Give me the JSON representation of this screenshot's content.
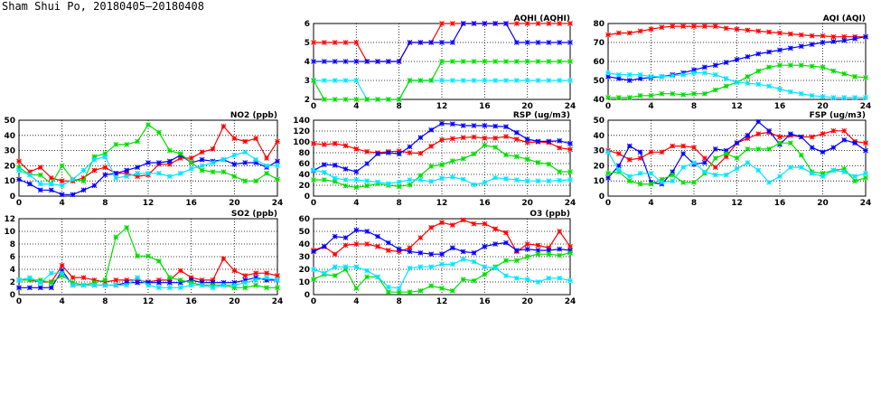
{
  "page_title": "Sham Shui Po, 20180405—20180408",
  "colors": {
    "red": "#ff0000",
    "blue": "#0000ff",
    "green": "#00dd00",
    "cyan": "#00e5ff"
  },
  "chart_data": [
    {
      "id": "aqhi",
      "type": "line",
      "title": "AQHI (AQHI)",
      "ylim": [
        2,
        6
      ],
      "yticks": [
        2,
        3,
        4,
        5,
        6
      ],
      "xticks": [
        0,
        4,
        8,
        12,
        16,
        20,
        24
      ],
      "grid": true,
      "series": [
        {
          "name": "red",
          "values": [
            5,
            5,
            5,
            5,
            5,
            4,
            4,
            4,
            4,
            5,
            5,
            5,
            6,
            6,
            6,
            6,
            6,
            6,
            6,
            6,
            6,
            6,
            6,
            6,
            6
          ]
        },
        {
          "name": "blue",
          "values": [
            4,
            4,
            4,
            4,
            4,
            4,
            4,
            4,
            4,
            5,
            5,
            5,
            5,
            5,
            6,
            6,
            6,
            6,
            6,
            5,
            5,
            5,
            5,
            5,
            5
          ]
        },
        {
          "name": "cyan",
          "values": [
            3,
            3,
            3,
            3,
            3,
            2,
            2,
            2,
            2,
            3,
            3,
            3,
            3,
            3,
            3,
            3,
            3,
            3,
            3,
            3,
            3,
            3,
            3,
            3,
            3
          ]
        },
        {
          "name": "green",
          "values": [
            3,
            2,
            2,
            2,
            2,
            2,
            2,
            2,
            2,
            3,
            3,
            3,
            4,
            4,
            4,
            4,
            4,
            4,
            4,
            4,
            4,
            4,
            4,
            4,
            4
          ]
        }
      ]
    },
    {
      "id": "aqi",
      "type": "line",
      "title": "AQI (AQI)",
      "ylim": [
        40,
        80
      ],
      "yticks": [
        40,
        50,
        60,
        70,
        80
      ],
      "xticks": [
        0,
        4,
        8,
        12,
        16,
        20,
        24
      ],
      "grid": true,
      "series": [
        {
          "name": "red",
          "values": [
            74,
            75,
            75,
            76,
            77,
            78,
            78.5,
            78.5,
            78.5,
            78.5,
            78.5,
            77.5,
            77,
            76.5,
            76,
            75.5,
            75,
            74.5,
            74,
            73.5,
            73.5,
            73,
            73,
            73,
            73
          ]
        },
        {
          "name": "blue",
          "values": [
            52,
            51,
            50,
            51,
            51.5,
            52,
            53,
            54,
            55.5,
            57,
            58,
            59.5,
            61,
            62.5,
            64,
            65,
            66,
            67,
            68,
            69,
            70,
            70.5,
            71,
            72,
            73
          ]
        },
        {
          "name": "green",
          "values": [
            41,
            41,
            41,
            42,
            42,
            43,
            43,
            42.5,
            43,
            43,
            45,
            47,
            49,
            52,
            55,
            57,
            58,
            58,
            58,
            57.5,
            57,
            55,
            53.5,
            52,
            51.5
          ]
        },
        {
          "name": "cyan",
          "values": [
            54,
            53,
            53,
            53,
            52,
            52,
            52.5,
            53,
            54,
            54,
            53,
            51,
            49,
            48.5,
            48,
            47,
            45.5,
            44,
            43,
            42,
            41.5,
            41,
            41,
            41,
            41
          ]
        }
      ]
    },
    {
      "id": "no2",
      "type": "line",
      "title": "NO2 (ppb)",
      "ylim": [
        0,
        50
      ],
      "yticks": [
        0,
        10,
        20,
        30,
        40,
        50
      ],
      "xticks": [
        0,
        4,
        8,
        12,
        16,
        20,
        24
      ],
      "grid": true,
      "series": [
        {
          "name": "red",
          "values": [
            23,
            16,
            19,
            12,
            10,
            10,
            12,
            17,
            19,
            15,
            15,
            13,
            14,
            21,
            21,
            25,
            25,
            29,
            31,
            46,
            38,
            36,
            38,
            25,
            36
          ]
        },
        {
          "name": "blue",
          "values": [
            11,
            8,
            4,
            4,
            1,
            1,
            4,
            7,
            14,
            15,
            17,
            19,
            22,
            22,
            23,
            27,
            22,
            24,
            23,
            24,
            21,
            22,
            22,
            19,
            23
          ]
        },
        {
          "name": "green",
          "values": [
            19,
            14,
            14,
            8,
            20,
            11,
            10,
            26,
            28,
            34,
            34,
            36,
            47,
            42,
            30,
            28,
            22,
            17,
            16,
            16,
            13,
            10,
            10,
            15,
            11
          ]
        },
        {
          "name": "cyan",
          "values": [
            17,
            14,
            8,
            8,
            7,
            11,
            17,
            24,
            26,
            12,
            13,
            15,
            15,
            15,
            13,
            15,
            18,
            20,
            22,
            24,
            27,
            29,
            24,
            20,
            20
          ]
        }
      ]
    },
    {
      "id": "rsp",
      "type": "line",
      "title": "RSP (ug/m3)",
      "ylim": [
        0,
        140
      ],
      "yticks": [
        0,
        20,
        40,
        60,
        80,
        100,
        120,
        140
      ],
      "xticks": [
        0,
        4,
        8,
        12,
        16,
        20,
        24
      ],
      "grid": true,
      "series": [
        {
          "name": "red",
          "values": [
            97,
            95,
            97,
            93,
            87,
            82,
            80,
            82,
            83,
            80,
            79,
            92,
            104,
            106,
            108,
            109,
            107,
            107,
            110,
            105,
            99,
            100,
            99,
            89,
            86
          ]
        },
        {
          "name": "blue",
          "values": [
            47,
            58,
            57,
            50,
            45,
            60,
            78,
            80,
            78,
            91,
            108,
            122,
            134,
            133,
            130,
            130,
            130,
            129,
            128,
            117,
            105,
            101,
            101,
            102,
            97
          ]
        },
        {
          "name": "green",
          "values": [
            30,
            30,
            27,
            19,
            16,
            19,
            23,
            20,
            18,
            21,
            38,
            55,
            58,
            65,
            69,
            78,
            94,
            90,
            76,
            73,
            68,
            62,
            59,
            45,
            45
          ]
        },
        {
          "name": "cyan",
          "values": [
            48,
            44,
            33,
            30,
            30,
            28,
            26,
            23,
            26,
            30,
            30,
            27,
            33,
            35,
            31,
            21,
            25,
            34,
            32,
            30,
            28,
            28,
            28,
            29,
            30
          ]
        }
      ]
    },
    {
      "id": "fsp",
      "type": "line",
      "title": "FSP (ug/m3)",
      "ylim": [
        0,
        50
      ],
      "yticks": [
        0,
        10,
        20,
        30,
        40,
        50
      ],
      "xticks": [
        0,
        4,
        8,
        12,
        16,
        20,
        24
      ],
      "grid": true,
      "series": [
        {
          "name": "red",
          "values": [
            30,
            28,
            24,
            25,
            29,
            29,
            33,
            33,
            32,
            25,
            19,
            26,
            35,
            38,
            41,
            42,
            39,
            40,
            39,
            39,
            41,
            43,
            43,
            36,
            35
          ]
        },
        {
          "name": "blue",
          "values": [
            12,
            20,
            33,
            29,
            9,
            8,
            16,
            28,
            21,
            22,
            31,
            30,
            35,
            40,
            49,
            43,
            34,
            41,
            39,
            32,
            29,
            32,
            37,
            35,
            30
          ]
        },
        {
          "name": "green",
          "values": [
            15,
            16,
            10,
            8,
            8,
            11,
            14,
            9,
            9,
            15,
            25,
            28,
            25,
            31,
            31,
            31,
            35,
            35,
            27,
            16,
            15,
            17,
            18,
            10,
            12
          ]
        },
        {
          "name": "cyan",
          "values": [
            29,
            17,
            13,
            15,
            15,
            9,
            10,
            19,
            22,
            16,
            14,
            14,
            18,
            22,
            17,
            9,
            13,
            19,
            19,
            15,
            13,
            17,
            16,
            13,
            15
          ]
        }
      ]
    },
    {
      "id": "so2",
      "type": "line",
      "title": "SO2 (ppb)",
      "ylim": [
        0,
        12
      ],
      "yticks": [
        0,
        2,
        4,
        6,
        8,
        10,
        12
      ],
      "xticks": [
        0,
        4,
        8,
        12,
        16,
        20,
        24
      ],
      "grid": true,
      "series": [
        {
          "name": "red",
          "values": [
            2.3,
            2.3,
            2,
            2,
            4.6,
            2.7,
            2.7,
            2.3,
            2,
            2.3,
            2.3,
            2.3,
            2,
            2.3,
            2.3,
            3.8,
            2.7,
            2.3,
            2.3,
            5.7,
            3.8,
            3,
            3.4,
            3.4,
            3
          ]
        },
        {
          "name": "blue",
          "values": [
            1.1,
            1.1,
            1.1,
            1.1,
            3.8,
            1.5,
            1.5,
            1.5,
            1.5,
            1.5,
            1.9,
            1.9,
            1.9,
            1.9,
            1.9,
            1.9,
            2.3,
            1.9,
            1.9,
            1.9,
            1.9,
            2.3,
            2.7,
            2.3,
            2.3
          ]
        },
        {
          "name": "green",
          "values": [
            2.3,
            2.3,
            2.3,
            1.9,
            3,
            1.9,
            1.5,
            1.9,
            2.3,
            9.1,
            10.6,
            6.1,
            6.1,
            5.3,
            2.7,
            2.3,
            1.9,
            1.5,
            1.5,
            1.5,
            1.1,
            1.1,
            1.5,
            1.1,
            1.1
          ]
        },
        {
          "name": "cyan",
          "values": [
            2.3,
            2.7,
            1.9,
            3.4,
            3.4,
            1.5,
            1.5,
            1.5,
            1.5,
            1.5,
            1.5,
            2.7,
            1.5,
            1.1,
            1.1,
            1.1,
            1.5,
            1.5,
            1.1,
            1.5,
            1.5,
            1.9,
            2.3,
            2.7,
            2.3
          ]
        }
      ]
    },
    {
      "id": "o3",
      "type": "line",
      "title": "O3 (ppb)",
      "ylim": [
        0,
        60
      ],
      "yticks": [
        0,
        10,
        20,
        30,
        40,
        50,
        60
      ],
      "xticks": [
        0,
        4,
        8,
        12,
        16,
        20,
        24
      ],
      "grid": true,
      "series": [
        {
          "name": "red",
          "values": [
            35,
            38,
            32,
            39,
            40,
            40,
            38,
            35,
            34,
            37,
            45,
            53,
            57,
            55,
            59,
            56,
            56,
            52,
            49,
            34,
            40,
            39,
            37,
            50,
            38
          ]
        },
        {
          "name": "blue",
          "values": [
            34,
            38,
            46,
            45,
            51,
            50,
            46,
            41,
            36,
            34,
            33,
            32,
            32,
            37,
            34,
            33,
            38,
            40,
            41,
            35,
            36,
            35,
            35,
            36,
            35
          ]
        },
        {
          "name": "green",
          "values": [
            12,
            16,
            15,
            20,
            5,
            14,
            14,
            2,
            2,
            2,
            3,
            7,
            5,
            3,
            12,
            11,
            16,
            22,
            27,
            27,
            30,
            32,
            32,
            31,
            33
          ]
        },
        {
          "name": "cyan",
          "values": [
            20,
            17,
            22,
            22,
            22,
            19,
            14,
            6,
            5,
            21,
            22,
            22,
            24,
            24,
            28,
            26,
            22,
            21,
            15,
            13,
            12,
            10,
            13,
            13,
            11
          ]
        }
      ]
    }
  ]
}
